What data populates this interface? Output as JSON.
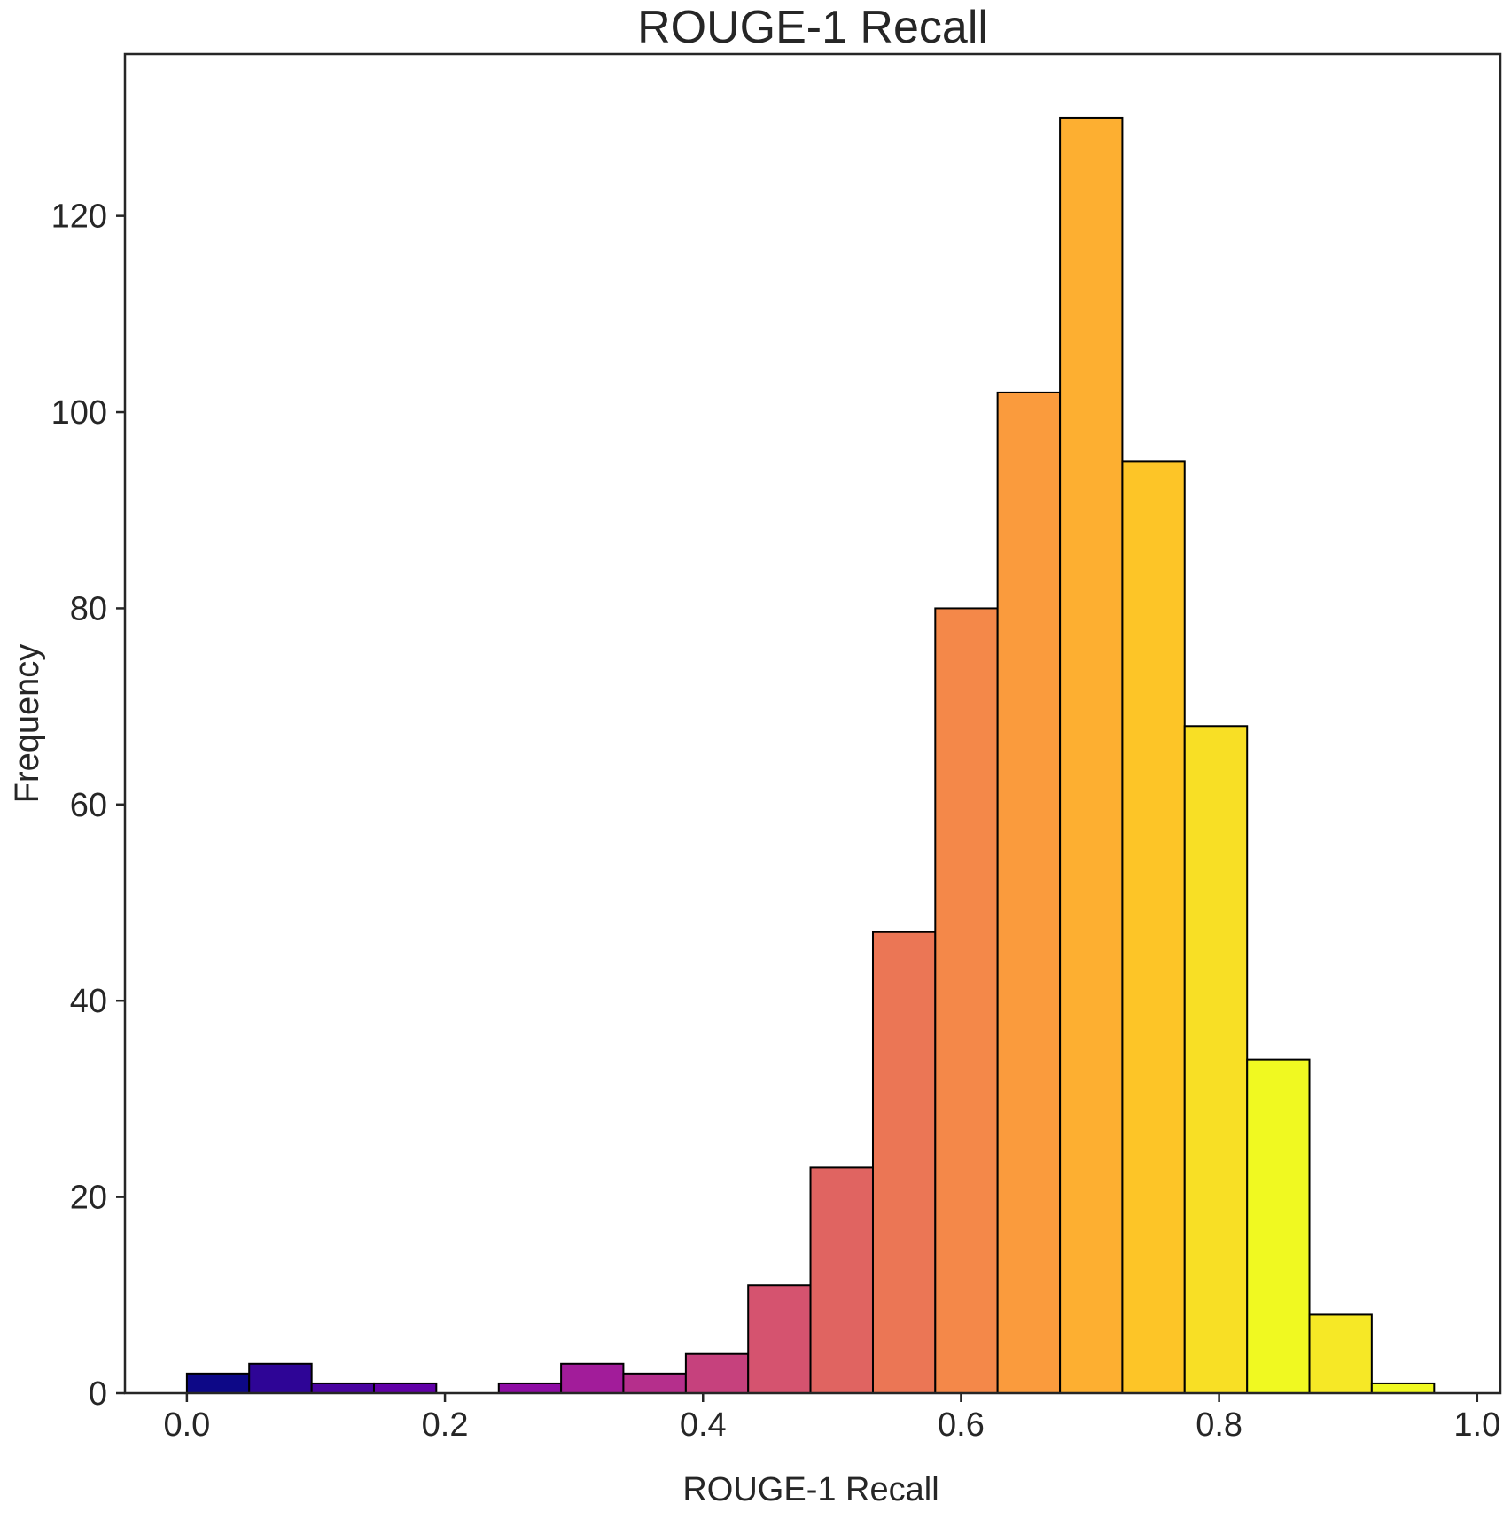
{
  "chart_data": {
    "type": "bar",
    "title": "ROUGE-1 Recall",
    "xlabel": "ROUGE-1 Recall",
    "ylabel": "Frequency",
    "xlim": [
      -0.048,
      1.018
    ],
    "ylim": [
      0,
      136.5
    ],
    "grid": false,
    "legend": "none",
    "x_ticks": [
      "0.0",
      "0.2",
      "0.4",
      "0.6",
      "0.8",
      "1.0"
    ],
    "x_tick_values": [
      0.0,
      0.2,
      0.4,
      0.6,
      0.8,
      1.0
    ],
    "y_ticks": [
      "0",
      "20",
      "40",
      "60",
      "80",
      "100",
      "120"
    ],
    "y_tick_values": [
      0,
      20,
      40,
      60,
      80,
      100,
      120
    ],
    "bin_edges": [
      0.0,
      0.0483,
      0.0967,
      0.145,
      0.1933,
      0.2417,
      0.29,
      0.3383,
      0.3867,
      0.435,
      0.4833,
      0.5317,
      0.58,
      0.6283,
      0.6767,
      0.725,
      0.7733,
      0.8217,
      0.87,
      0.9183,
      0.9667
    ],
    "values": [
      2,
      3,
      1,
      1,
      0,
      1,
      3,
      2,
      4,
      11,
      23,
      47,
      80,
      102,
      130,
      95,
      68,
      34,
      8,
      1
    ],
    "colors": [
      "#0d0887",
      "#2e0596",
      "#4903a0",
      "#6100a7",
      "#7801a8",
      "#8e0ca4",
      "#a21c9a",
      "#b52f8c",
      "#c6417d",
      "#d5536f",
      "#e06461",
      "#eb7655",
      "#f48849",
      "#fa9b3d",
      "#fdaf31",
      "#fdc527",
      "#f8df25",
      "#f0f921",
      "#f6e826",
      "#f0f921"
    ],
    "bar_edge_color": "#000000",
    "axis_color": "#262626"
  }
}
